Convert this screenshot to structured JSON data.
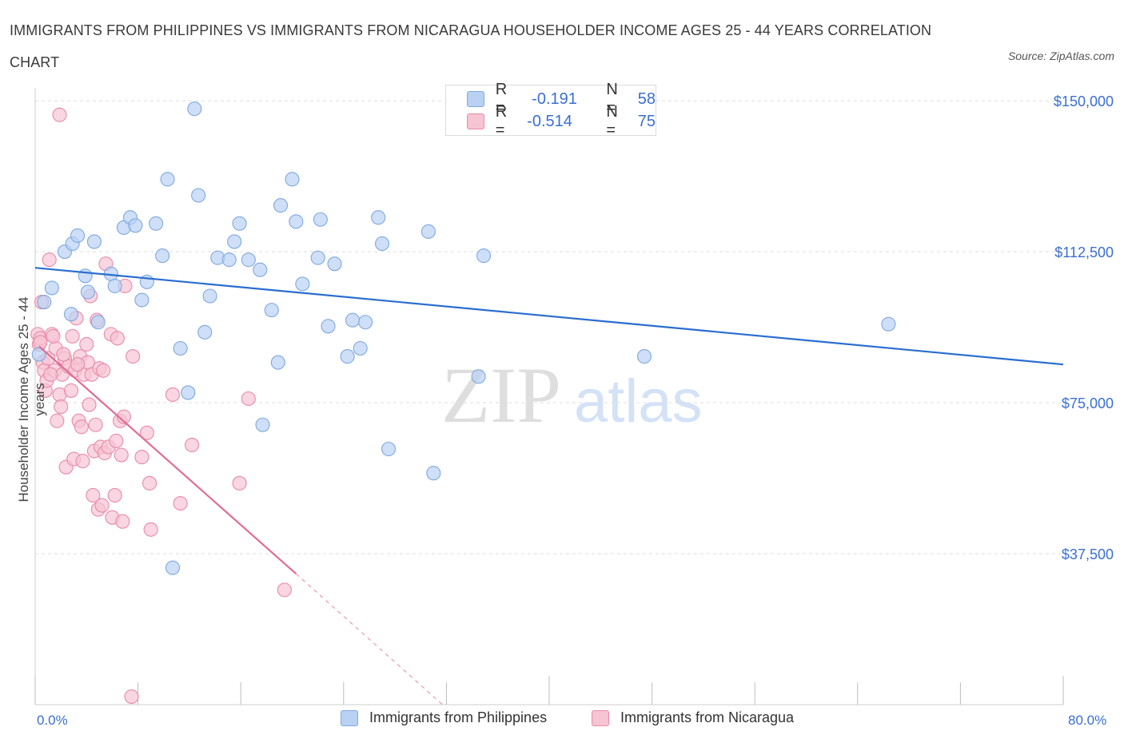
{
  "title": "IMMIGRANTS FROM PHILIPPINES VS IMMIGRANTS FROM NICARAGUA HOUSEHOLDER INCOME AGES 25 - 44 YEARS CORRELATION CHART",
  "source": "Source: ZipAtlas.com",
  "watermark": {
    "zip": "ZIP",
    "atlas": "atlas"
  },
  "legend_top": {
    "rows": [
      {
        "r_label": "R =",
        "r_value": "-0.191",
        "n_label": "N =",
        "n_value": "58"
      },
      {
        "r_label": "R =",
        "r_value": "-0.514",
        "n_label": "N =",
        "n_value": "75"
      }
    ]
  },
  "colors": {
    "philippines_fill": "#b9d2f3",
    "philippines_stroke": "#7fa8e0",
    "philippines_line": "#2a6dd0",
    "nicaragua_fill": "#f7c4d4",
    "nicaragua_stroke": "#e98aa8",
    "nicaragua_line": "#e06c95",
    "tick_text": "#3a6fd1",
    "grid": "#dddddd"
  },
  "chart_data": {
    "type": "scatter",
    "title": "IMMIGRANTS FROM PHILIPPINES VS IMMIGRANTS FROM NICARAGUA HOUSEHOLDER INCOME AGES 25 - 44 YEARS CORRELATION CHART",
    "xlabel": "",
    "ylabel": "Householder Income Ages 25 - 44 years",
    "xlim": [
      0,
      80
    ],
    "ylim": [
      0,
      152000
    ],
    "x_tick_labels": [
      "0.0%",
      "80.0%"
    ],
    "y_ticks": [
      37500,
      75000,
      112500,
      150000
    ],
    "y_tick_labels": [
      "$37,500",
      "$75,000",
      "$112,500",
      "$150,000"
    ],
    "grid": "horizontal dashed",
    "legend_position": "bottom",
    "series": [
      {
        "name": "Immigrants from Philippines",
        "r": -0.191,
        "n": 58,
        "trend": {
          "x": [
            0,
            80
          ],
          "y": [
            108500,
            84500
          ]
        },
        "points": [
          [
            0.7,
            100000
          ],
          [
            1.3,
            103500
          ],
          [
            2.3,
            112500
          ],
          [
            2.8,
            97000
          ],
          [
            2.9,
            114500
          ],
          [
            3.3,
            116500
          ],
          [
            3.9,
            106500
          ],
          [
            4.1,
            102500
          ],
          [
            4.6,
            115000
          ],
          [
            4.9,
            95000
          ],
          [
            5.9,
            107000
          ],
          [
            6.2,
            104000
          ],
          [
            6.9,
            118500
          ],
          [
            7.4,
            121000
          ],
          [
            7.8,
            119000
          ],
          [
            8.3,
            100500
          ],
          [
            8.7,
            105000
          ],
          [
            9.4,
            119500
          ],
          [
            9.9,
            111500
          ],
          [
            10.3,
            130500
          ],
          [
            11.3,
            88500
          ],
          [
            11.9,
            77500
          ],
          [
            12.4,
            148000
          ],
          [
            12.7,
            126500
          ],
          [
            13.2,
            92500
          ],
          [
            13.6,
            101500
          ],
          [
            14.2,
            111000
          ],
          [
            15.1,
            110500
          ],
          [
            15.5,
            115000
          ],
          [
            15.9,
            119500
          ],
          [
            16.6,
            110500
          ],
          [
            17.5,
            108000
          ],
          [
            17.7,
            69500
          ],
          [
            18.4,
            98000
          ],
          [
            18.9,
            85000
          ],
          [
            19.1,
            124000
          ],
          [
            20.0,
            130500
          ],
          [
            20.3,
            120000
          ],
          [
            20.8,
            104500
          ],
          [
            22.0,
            111000
          ],
          [
            22.2,
            120500
          ],
          [
            22.8,
            94000
          ],
          [
            23.3,
            109500
          ],
          [
            24.3,
            86500
          ],
          [
            24.7,
            95500
          ],
          [
            25.3,
            88500
          ],
          [
            25.7,
            95000
          ],
          [
            26.7,
            121000
          ],
          [
            27.0,
            114500
          ],
          [
            27.5,
            63500
          ],
          [
            30.6,
            117500
          ],
          [
            31.0,
            57500
          ],
          [
            34.5,
            81500
          ],
          [
            34.9,
            111500
          ],
          [
            10.7,
            34000
          ],
          [
            47.4,
            86500
          ],
          [
            66.4,
            94500
          ],
          [
            0.3,
            87000
          ]
        ]
      },
      {
        "name": "Immigrants from Nicaragua",
        "r": -0.514,
        "n": 75,
        "trend": {
          "x": [
            0.3,
            20.3
          ],
          "y": [
            89000,
            32500
          ]
        },
        "trend_dashed": {
          "x": [
            20.3,
            31.7
          ],
          "y": [
            32500,
            0
          ]
        },
        "points": [
          [
            1.9,
            146500
          ],
          [
            0.2,
            92000
          ],
          [
            0.3,
            89500
          ],
          [
            0.4,
            91000
          ],
          [
            0.6,
            85000
          ],
          [
            0.7,
            83000
          ],
          [
            0.8,
            78000
          ],
          [
            0.9,
            80500
          ],
          [
            1.0,
            86000
          ],
          [
            1.1,
            110500
          ],
          [
            1.3,
            92000
          ],
          [
            1.5,
            83000
          ],
          [
            1.6,
            88500
          ],
          [
            1.7,
            70500
          ],
          [
            1.9,
            77000
          ],
          [
            2.0,
            74000
          ],
          [
            2.1,
            82000
          ],
          [
            2.3,
            86000
          ],
          [
            2.4,
            59000
          ],
          [
            2.6,
            84000
          ],
          [
            2.8,
            78000
          ],
          [
            2.9,
            91500
          ],
          [
            3.0,
            61000
          ],
          [
            3.1,
            83000
          ],
          [
            3.2,
            96000
          ],
          [
            3.4,
            70500
          ],
          [
            3.5,
            86500
          ],
          [
            3.6,
            69000
          ],
          [
            3.7,
            60500
          ],
          [
            3.8,
            82000
          ],
          [
            4.0,
            89500
          ],
          [
            4.1,
            85000
          ],
          [
            4.2,
            74500
          ],
          [
            4.3,
            101500
          ],
          [
            4.4,
            82000
          ],
          [
            4.5,
            52000
          ],
          [
            4.6,
            63000
          ],
          [
            4.7,
            69500
          ],
          [
            4.8,
            95500
          ],
          [
            4.9,
            48500
          ],
          [
            5.0,
            83500
          ],
          [
            5.1,
            64000
          ],
          [
            5.2,
            49500
          ],
          [
            5.4,
            62500
          ],
          [
            5.5,
            109500
          ],
          [
            5.7,
            64000
          ],
          [
            5.9,
            92000
          ],
          [
            6.0,
            46500
          ],
          [
            6.2,
            52000
          ],
          [
            6.4,
            91000
          ],
          [
            6.6,
            70500
          ],
          [
            6.7,
            62000
          ],
          [
            6.8,
            45500
          ],
          [
            6.9,
            71500
          ],
          [
            7.0,
            104000
          ],
          [
            7.6,
            86500
          ],
          [
            8.3,
            61500
          ],
          [
            8.7,
            67500
          ],
          [
            8.9,
            55000
          ],
          [
            9.0,
            43500
          ],
          [
            10.7,
            77000
          ],
          [
            11.3,
            50000
          ],
          [
            12.2,
            64500
          ],
          [
            15.9,
            55000
          ],
          [
            16.6,
            76000
          ],
          [
            19.4,
            28500
          ],
          [
            7.5,
            2000
          ],
          [
            0.5,
            100000
          ],
          [
            1.2,
            82000
          ],
          [
            2.2,
            87000
          ],
          [
            3.3,
            84500
          ],
          [
            0.4,
            90000
          ],
          [
            5.3,
            83000
          ],
          [
            6.3,
            65500
          ],
          [
            1.4,
            91500
          ]
        ]
      }
    ]
  },
  "bottom_legend": [
    {
      "label": "Immigrants from Philippines"
    },
    {
      "label": "Immigrants from Nicaragua"
    }
  ]
}
